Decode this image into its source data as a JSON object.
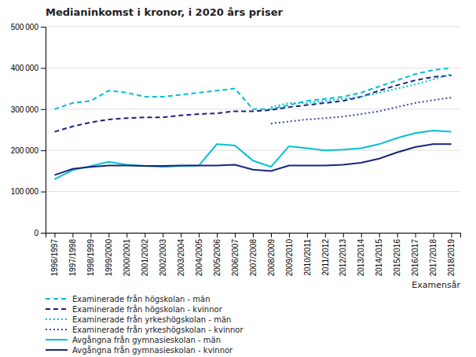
{
  "chart_data": {
    "type": "line",
    "title": "Medianinkomst i kronor, i 2020 års priser",
    "xlabel": "Examensår",
    "categories": [
      "1996/1997",
      "1997/1998",
      "1998/1999",
      "1999/2000",
      "2000/2001",
      "2001/2002",
      "2002/2003",
      "2003/2004",
      "2004/2005",
      "2005/2006",
      "2006/2007",
      "2007/2008",
      "2008/2009",
      "2009/2010",
      "2010/2011",
      "2011/2012",
      "2012/2013",
      "2013/2014",
      "2014/2015",
      "2015/2016",
      "2016/2017",
      "2017/2018",
      "2018/2019"
    ],
    "series": [
      {
        "name": "Examinerade från högskolan - män",
        "color": "#00c0d4",
        "line_style": "dashed",
        "values": [
          300000,
          315000,
          320000,
          345000,
          340000,
          330000,
          330000,
          335000,
          340000,
          345000,
          350000,
          300000,
          300000,
          310000,
          320000,
          325000,
          330000,
          340000,
          355000,
          370000,
          385000,
          395000,
          400000
        ]
      },
      {
        "name": "Examinerade från högskolan - kvinnor",
        "color": "#1a237e",
        "line_style": "dashed",
        "values": [
          245000,
          258000,
          268000,
          275000,
          278000,
          280000,
          280000,
          285000,
          288000,
          290000,
          295000,
          295000,
          298000,
          305000,
          310000,
          315000,
          320000,
          330000,
          345000,
          358000,
          370000,
          378000,
          382000
        ]
      },
      {
        "name": "Examinerade från yrkeshögskolan - män",
        "color": "#00c0d4",
        "line_style": "dotted",
        "values": [
          null,
          null,
          null,
          null,
          null,
          null,
          null,
          null,
          null,
          null,
          null,
          null,
          305000,
          315000,
          315000,
          320000,
          325000,
          330000,
          340000,
          350000,
          360000,
          372000,
          385000
        ]
      },
      {
        "name": "Examinerade från yrkeshögskolan - kvinnor",
        "color": "#3949ab",
        "line_style": "dotted",
        "values": [
          null,
          null,
          null,
          null,
          null,
          null,
          null,
          null,
          null,
          null,
          null,
          null,
          265000,
          270000,
          275000,
          278000,
          282000,
          288000,
          295000,
          305000,
          315000,
          322000,
          328000
        ]
      },
      {
        "name": "Avgångna från gymnasieskolan - män",
        "color": "#00c0d4",
        "line_style": "solid",
        "values": [
          130000,
          152000,
          162000,
          172000,
          165000,
          162000,
          160000,
          162000,
          163000,
          215000,
          212000,
          175000,
          160000,
          210000,
          205000,
          200000,
          202000,
          205000,
          215000,
          230000,
          242000,
          248000,
          245000
        ]
      },
      {
        "name": "Avgångna från gymnasieskolan - kvinnor",
        "color": "#1a237e",
        "line_style": "solid",
        "values": [
          140000,
          155000,
          160000,
          163000,
          163000,
          162000,
          162000,
          163000,
          163000,
          163000,
          165000,
          153000,
          150000,
          163000,
          163000,
          163000,
          165000,
          170000,
          180000,
          195000,
          208000,
          215000,
          215000
        ]
      }
    ],
    "ylim": [
      0,
      500000
    ],
    "yticks": [
      0,
      {
        "value": 100000,
        "label": "100 000"
      },
      {
        "value": 200000,
        "label": "200 000"
      },
      {
        "value": 300000,
        "label": "300 000"
      },
      {
        "value": 400000,
        "label": "400 000"
      },
      {
        "value": 500000,
        "label": "500 000"
      }
    ],
    "grid": true,
    "legend": "bottom"
  }
}
